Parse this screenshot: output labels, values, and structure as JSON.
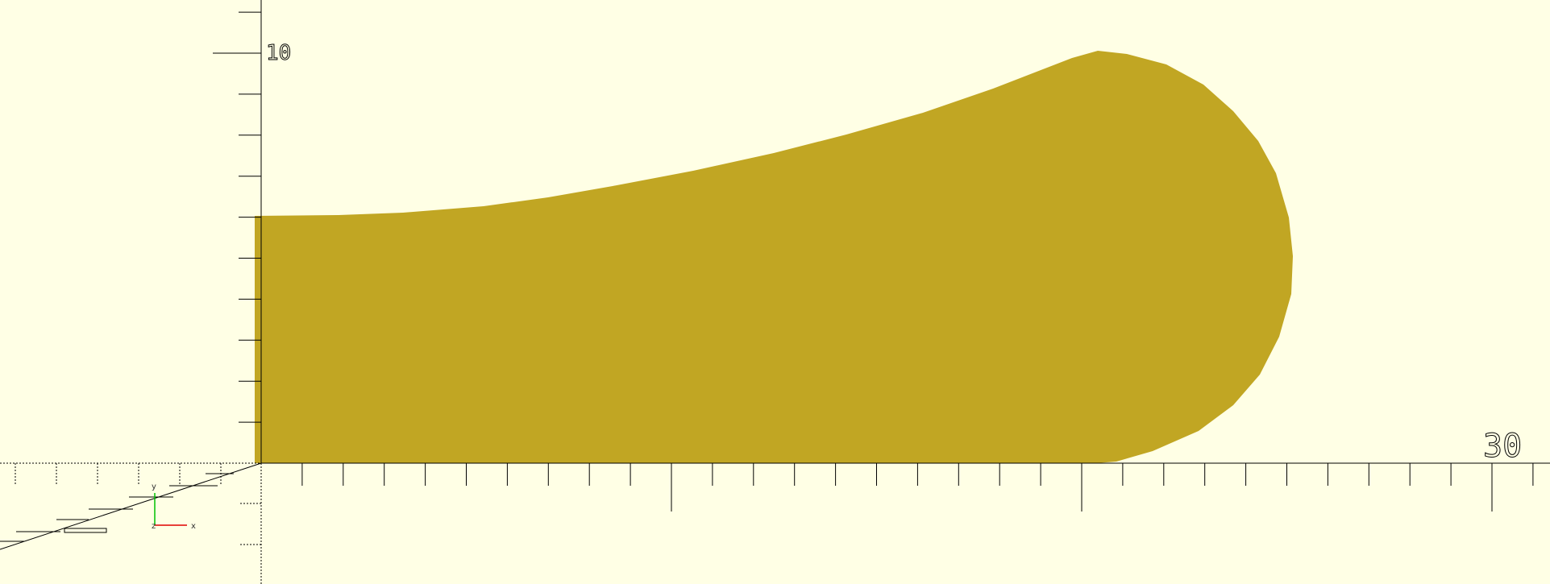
{
  "viewport": {
    "background_color": "#ffffe5",
    "shape_color": "#c1a623",
    "axis_color": "#000000",
    "axis_labels": {
      "x_max": "30",
      "y_max": "10"
    },
    "orientation_gizmo": {
      "x_label": "x",
      "y_label": "y",
      "z_label": "z",
      "x_color": "#e00000",
      "y_color": "#00c000",
      "z_color": "#0000e0"
    }
  }
}
